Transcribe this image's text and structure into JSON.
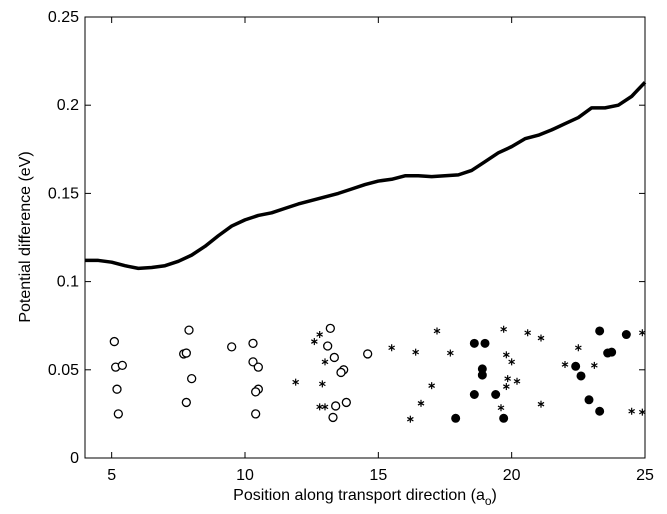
{
  "chart_data": {
    "type": "line",
    "title": "",
    "xlabel": "Position along transport direction (a",
    "xlabel_subscript": "o",
    "xlabel_close": ")",
    "ylabel": "Potential difference (eV)",
    "xlim": [
      4,
      25
    ],
    "ylim": [
      0,
      0.25
    ],
    "x_ticks": [
      5,
      10,
      15,
      20,
      25
    ],
    "y_ticks": [
      0,
      0.05,
      0.1,
      0.15,
      0.2,
      0.25
    ],
    "x_tick_labels": [
      "5",
      "10",
      "15",
      "20",
      "25"
    ],
    "y_tick_labels": [
      "0",
      "0.05",
      "0.1",
      "0.15",
      "0.2",
      "0.25"
    ],
    "grid": false,
    "legend": "none",
    "colors": {
      "line": "#000000",
      "markers": "#000000"
    },
    "series": [
      {
        "type": "line",
        "x": [
          4.0,
          4.5,
          5.0,
          5.5,
          6.0,
          6.5,
          7.0,
          7.5,
          8.0,
          8.5,
          9.0,
          9.5,
          10.0,
          10.5,
          11.0,
          11.5,
          12.0,
          12.5,
          13.0,
          13.5,
          14.0,
          14.5,
          15.0,
          15.5,
          16.0,
          16.5,
          17.0,
          17.5,
          18.0,
          18.5,
          19.0,
          19.5,
          20.0,
          20.5,
          21.0,
          21.5,
          22.0,
          22.5,
          23.0,
          23.5,
          24.0,
          24.5,
          25.0
        ],
        "y": [
          0.112,
          0.112,
          0.111,
          0.109,
          0.1075,
          0.108,
          0.109,
          0.1115,
          0.115,
          0.12,
          0.126,
          0.1315,
          0.135,
          0.1375,
          0.139,
          0.1415,
          0.144,
          0.146,
          0.148,
          0.15,
          0.1525,
          0.155,
          0.157,
          0.158,
          0.16,
          0.16,
          0.1595,
          0.16,
          0.1605,
          0.163,
          0.168,
          0.173,
          0.1765,
          0.181,
          0.183,
          0.186,
          0.1895,
          0.193,
          0.1985,
          0.1985,
          0.2,
          0.205,
          0.213
        ]
      },
      {
        "type": "scatter",
        "marker": "open-circle",
        "points": [
          [
            5.1,
            0.066
          ],
          [
            5.15,
            0.0515
          ],
          [
            5.4,
            0.0525
          ],
          [
            5.2,
            0.039
          ],
          [
            5.25,
            0.025
          ],
          [
            7.7,
            0.059
          ],
          [
            7.8,
            0.0595
          ],
          [
            7.9,
            0.0725
          ],
          [
            8.0,
            0.045
          ],
          [
            7.8,
            0.0315
          ],
          [
            9.5,
            0.063
          ],
          [
            10.3,
            0.065
          ],
          [
            10.3,
            0.0545
          ],
          [
            10.5,
            0.0515
          ],
          [
            10.5,
            0.039
          ],
          [
            10.4,
            0.0375
          ],
          [
            10.4,
            0.025
          ],
          [
            13.2,
            0.0735
          ],
          [
            13.1,
            0.0635
          ],
          [
            13.35,
            0.057
          ],
          [
            13.7,
            0.05
          ],
          [
            13.6,
            0.0485
          ],
          [
            13.4,
            0.0295
          ],
          [
            13.8,
            0.0315
          ],
          [
            13.3,
            0.023
          ],
          [
            14.6,
            0.059
          ]
        ]
      },
      {
        "type": "scatter",
        "marker": "asterisk",
        "points": [
          [
            11.9,
            0.043
          ],
          [
            12.6,
            0.066
          ],
          [
            12.8,
            0.07
          ],
          [
            13.0,
            0.0545
          ],
          [
            12.9,
            0.042
          ],
          [
            12.8,
            0.029
          ],
          [
            13.0,
            0.029
          ],
          [
            15.5,
            0.0625
          ],
          [
            16.4,
            0.06
          ],
          [
            16.6,
            0.031
          ],
          [
            16.2,
            0.022
          ],
          [
            17.0,
            0.041
          ],
          [
            17.2,
            0.072
          ],
          [
            17.7,
            0.0595
          ],
          [
            19.7,
            0.073
          ],
          [
            19.8,
            0.0585
          ],
          [
            20.0,
            0.0545
          ],
          [
            19.85,
            0.045
          ],
          [
            19.8,
            0.0405
          ],
          [
            20.2,
            0.0435
          ],
          [
            19.6,
            0.0285
          ],
          [
            20.6,
            0.071
          ],
          [
            21.1,
            0.068
          ],
          [
            21.1,
            0.0305
          ],
          [
            22.0,
            0.053
          ],
          [
            22.5,
            0.0625
          ],
          [
            23.1,
            0.0525
          ],
          [
            24.5,
            0.0265
          ],
          [
            24.9,
            0.071
          ],
          [
            24.9,
            0.026
          ]
        ]
      },
      {
        "type": "scatter",
        "marker": "filled-circle",
        "points": [
          [
            18.6,
            0.065
          ],
          [
            19.0,
            0.065
          ],
          [
            18.9,
            0.0505
          ],
          [
            18.9,
            0.047
          ],
          [
            18.6,
            0.036
          ],
          [
            19.4,
            0.036
          ],
          [
            17.9,
            0.0225
          ],
          [
            19.7,
            0.0225
          ],
          [
            22.4,
            0.052
          ],
          [
            22.6,
            0.0465
          ],
          [
            22.9,
            0.033
          ],
          [
            23.3,
            0.072
          ],
          [
            23.6,
            0.0595
          ],
          [
            23.75,
            0.06
          ],
          [
            24.3,
            0.07
          ],
          [
            23.3,
            0.0265
          ]
        ]
      }
    ]
  }
}
